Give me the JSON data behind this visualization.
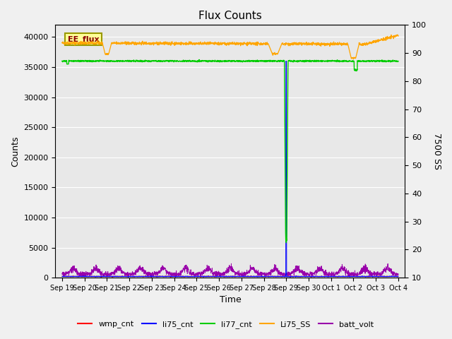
{
  "title": "Flux Counts",
  "ylabel_left": "Counts",
  "ylabel_right": "7500 SS",
  "xlabel": "Time",
  "annotation": "EE_flux",
  "ylim_left": [
    0,
    42000
  ],
  "ylim_right": [
    10,
    100
  ],
  "yticks_left": [
    0,
    5000,
    10000,
    15000,
    20000,
    25000,
    30000,
    35000,
    40000
  ],
  "yticks_right": [
    10,
    20,
    30,
    40,
    50,
    60,
    70,
    80,
    90,
    100
  ],
  "xtick_labels": [
    "Sep 19",
    "Sep 20",
    "Sep 21",
    "Sep 22",
    "Sep 23",
    "Sep 24",
    "Sep 25",
    "Sep 26",
    "Sep 27",
    "Sep 28",
    "Sep 29",
    "Sep 30",
    "Oct 1",
    "Oct 2",
    "Oct 3",
    "Oct 4"
  ],
  "legend_entries": [
    {
      "label": "wmp_cnt",
      "color": "#ff0000"
    },
    {
      "label": "li75_cnt",
      "color": "#0000ff"
    },
    {
      "label": "li77_cnt",
      "color": "#00cc00"
    },
    {
      "label": "Li75_SS",
      "color": "#ffa500"
    },
    {
      "label": "batt_volt",
      "color": "#9900aa"
    }
  ],
  "annotation_color": "#8B0000",
  "annotation_bg": "#ffff99",
  "annotation_edge": "#999900",
  "bg_color": "#e8e8e8",
  "fig_bg": "#f0f0f0",
  "grid_color": "#ffffff"
}
